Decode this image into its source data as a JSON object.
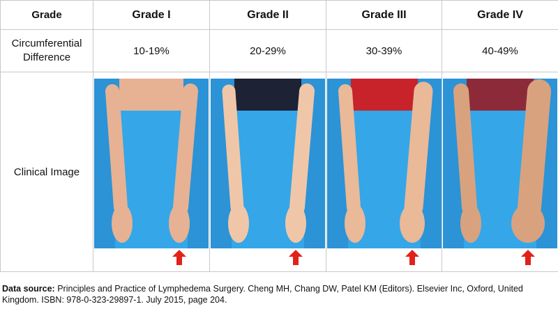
{
  "table": {
    "header": [
      "Grade",
      "Grade I",
      "Grade II",
      "Grade III",
      "Grade IV"
    ],
    "rows": [
      [
        "Circumferential Difference",
        "10-19%",
        "20-29%",
        "30-39%",
        "40-49%"
      ],
      [
        "Clinical Image"
      ]
    ]
  },
  "caption": {
    "label": "Data source:",
    "text": "Principles and Practice of Lymphedema Surgery. Cheng MH, Chang DW, Patel KM (Editors). Elsevier Inc, Oxford, United Kingdom. ISBN: 978-0-323-29897-1. July 2015, page 204."
  }
}
